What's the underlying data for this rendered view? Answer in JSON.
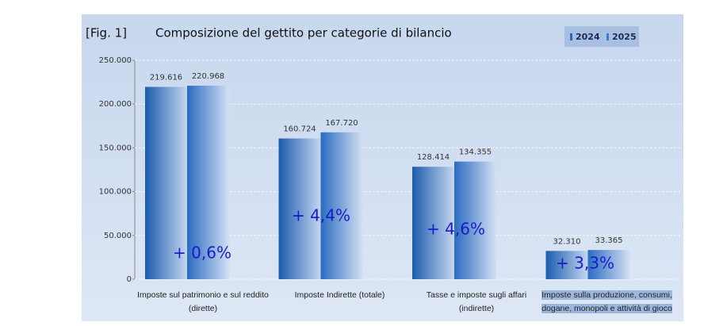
{
  "chart_data": {
    "type": "bar",
    "figure_label": "[Fig. 1]",
    "title": "Composizione del gettito per categorie di bilancio",
    "categories": [
      "Imposte sul patrimonio e sul  reddito (dirette)",
      "Imposte Indirette (totale)",
      "Tasse e imposte sugli affari (indirette)",
      "Imposte sulla produzione, consumi, dogane, monopoli e attività di gioco"
    ],
    "series": [
      {
        "name": "2024",
        "color": "#2a66b8",
        "values": [
          219616,
          160724,
          128414,
          32310
        ],
        "value_labels": [
          "219.616",
          "160.724",
          "128.414",
          "32.310"
        ]
      },
      {
        "name": "2025",
        "color": "#3a7bc8",
        "values": [
          220968,
          167720,
          134355,
          33365
        ],
        "value_labels": [
          "220.968",
          "167.720",
          "134.355",
          "33.365"
        ]
      }
    ],
    "annotations": [
      "+ 0,6%",
      "+ 4,4%",
      "+ 4,6%",
      "+ 3,3%"
    ],
    "ylim": [
      0,
      250000
    ],
    "yticks": [
      0,
      {
        "value": 50000,
        "label": "50.000"
      },
      {
        "value": 100000,
        "label": "100.000"
      },
      {
        "value": 150000,
        "label": "150.000"
      },
      {
        "value": 200000,
        "label": "200.000"
      },
      {
        "value": 250000,
        "label": "250.000"
      }
    ],
    "grid": true,
    "legend": "top-right"
  }
}
